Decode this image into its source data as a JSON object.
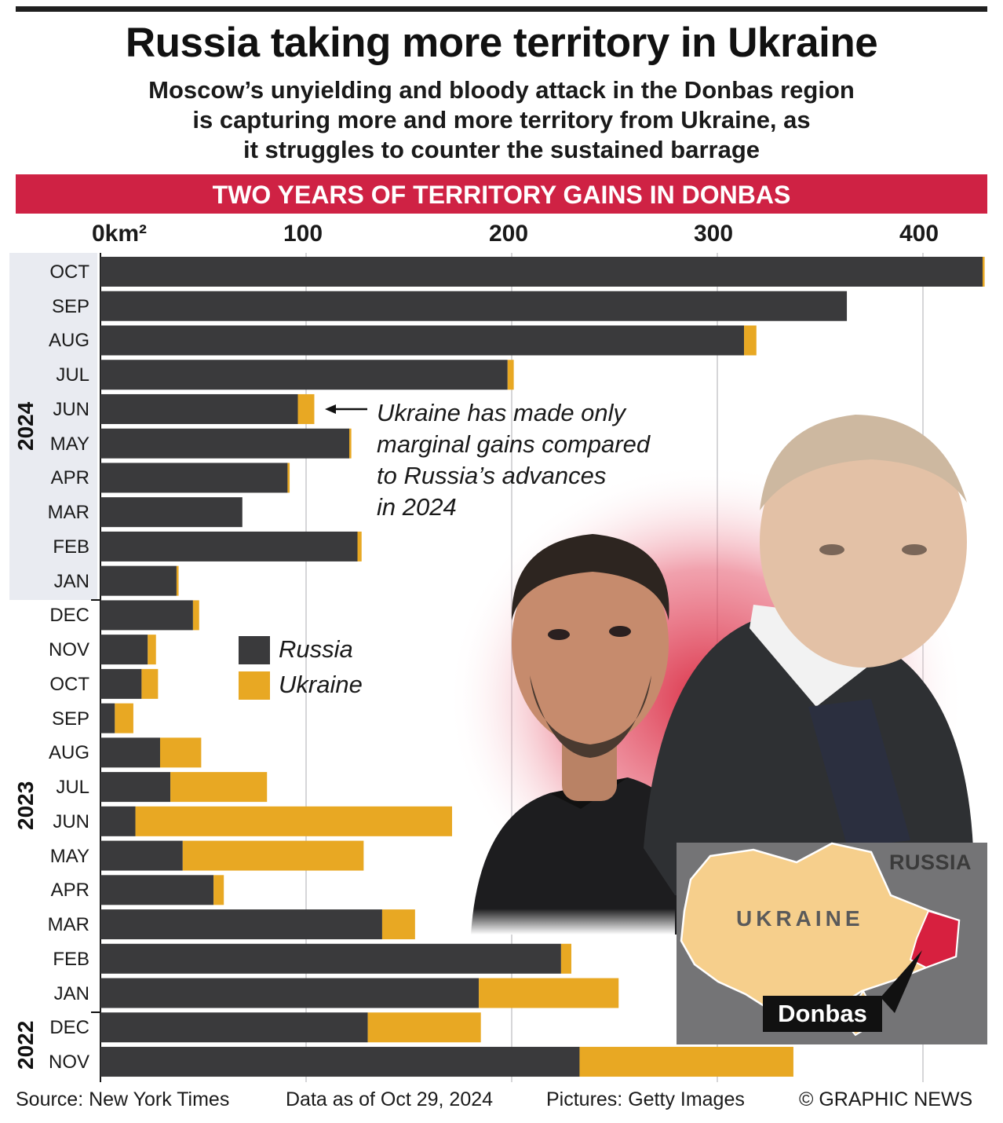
{
  "header": {
    "title": "Russia taking more territory in Ukraine",
    "subtitle_lines": [
      "Moscow’s unyielding and bloody attack in the Donbas region",
      "is capturing more and more territory from Ukraine, as",
      "it struggles to counter the sustained barrage"
    ]
  },
  "banner": {
    "text": "TWO YEARS OF TERRITORY GAINS IN DONBAS"
  },
  "annotation": {
    "lines": [
      "Ukraine has made only",
      "marginal gains compared",
      "to Russia’s advances",
      "in 2024"
    ]
  },
  "legend": {
    "russia": "Russia",
    "ukraine": "Ukraine"
  },
  "map": {
    "russia_label": "RUSSIA",
    "ukraine_label": "UKRAINE",
    "region_label": "Donbas"
  },
  "footer": {
    "source": "Source: New York Times",
    "data_as_of": "Data as of Oct 29, 2024",
    "pictures": "Pictures: Getty Images",
    "credit": "© GRAPHIC NEWS"
  },
  "colors": {
    "russia": "#3a3a3c",
    "ukraine": "#e8a823",
    "banner": "#cf2244",
    "donbas": "#d7203f"
  },
  "chart_data": {
    "type": "bar",
    "orientation": "horizontal",
    "stacked": true,
    "unit": "km²",
    "x_tick_labels": [
      "0km²",
      "100",
      "200",
      "300",
      "400"
    ],
    "x_ticks": [
      0,
      100,
      200,
      300,
      400
    ],
    "xlim": [
      0,
      430
    ],
    "grid": true,
    "legend_position": "middle-left",
    "year_groups": [
      {
        "label": "2024",
        "months": [
          "OCT",
          "SEP",
          "AUG",
          "JUL",
          "JUN",
          "MAY",
          "APR",
          "MAR",
          "FEB",
          "JAN"
        ]
      },
      {
        "label": "2023",
        "months": [
          "DEC",
          "NOV",
          "OCT",
          "SEP",
          "AUG",
          "JUL",
          "JUN",
          "MAY",
          "APR",
          "MAR",
          "FEB",
          "JAN"
        ]
      },
      {
        "label": "2022",
        "months": [
          "DEC",
          "NOV"
        ]
      }
    ],
    "categories": [
      "OCT 2024",
      "SEP 2024",
      "AUG 2024",
      "JUL 2024",
      "JUN 2024",
      "MAY 2024",
      "APR 2024",
      "MAR 2024",
      "FEB 2024",
      "JAN 2024",
      "DEC 2023",
      "NOV 2023",
      "OCT 2023",
      "SEP 2023",
      "AUG 2023",
      "JUL 2023",
      "JUN 2023",
      "MAY 2023",
      "APR 2023",
      "MAR 2023",
      "FEB 2023",
      "JAN 2023",
      "DEC 2022",
      "NOV 2022"
    ],
    "series": [
      {
        "name": "Russia",
        "values": [
          429,
          363,
          313,
          198,
          96,
          121,
          91,
          69,
          125,
          37,
          45,
          23,
          20,
          7,
          29,
          34,
          17,
          40,
          55,
          137,
          224,
          184,
          130,
          233
        ]
      },
      {
        "name": "Ukraine",
        "values": [
          1,
          0,
          6,
          3,
          8,
          1,
          1,
          0,
          2,
          1,
          3,
          4,
          8,
          9,
          20,
          47,
          154,
          88,
          5,
          16,
          5,
          68,
          55,
          104
        ]
      }
    ]
  }
}
